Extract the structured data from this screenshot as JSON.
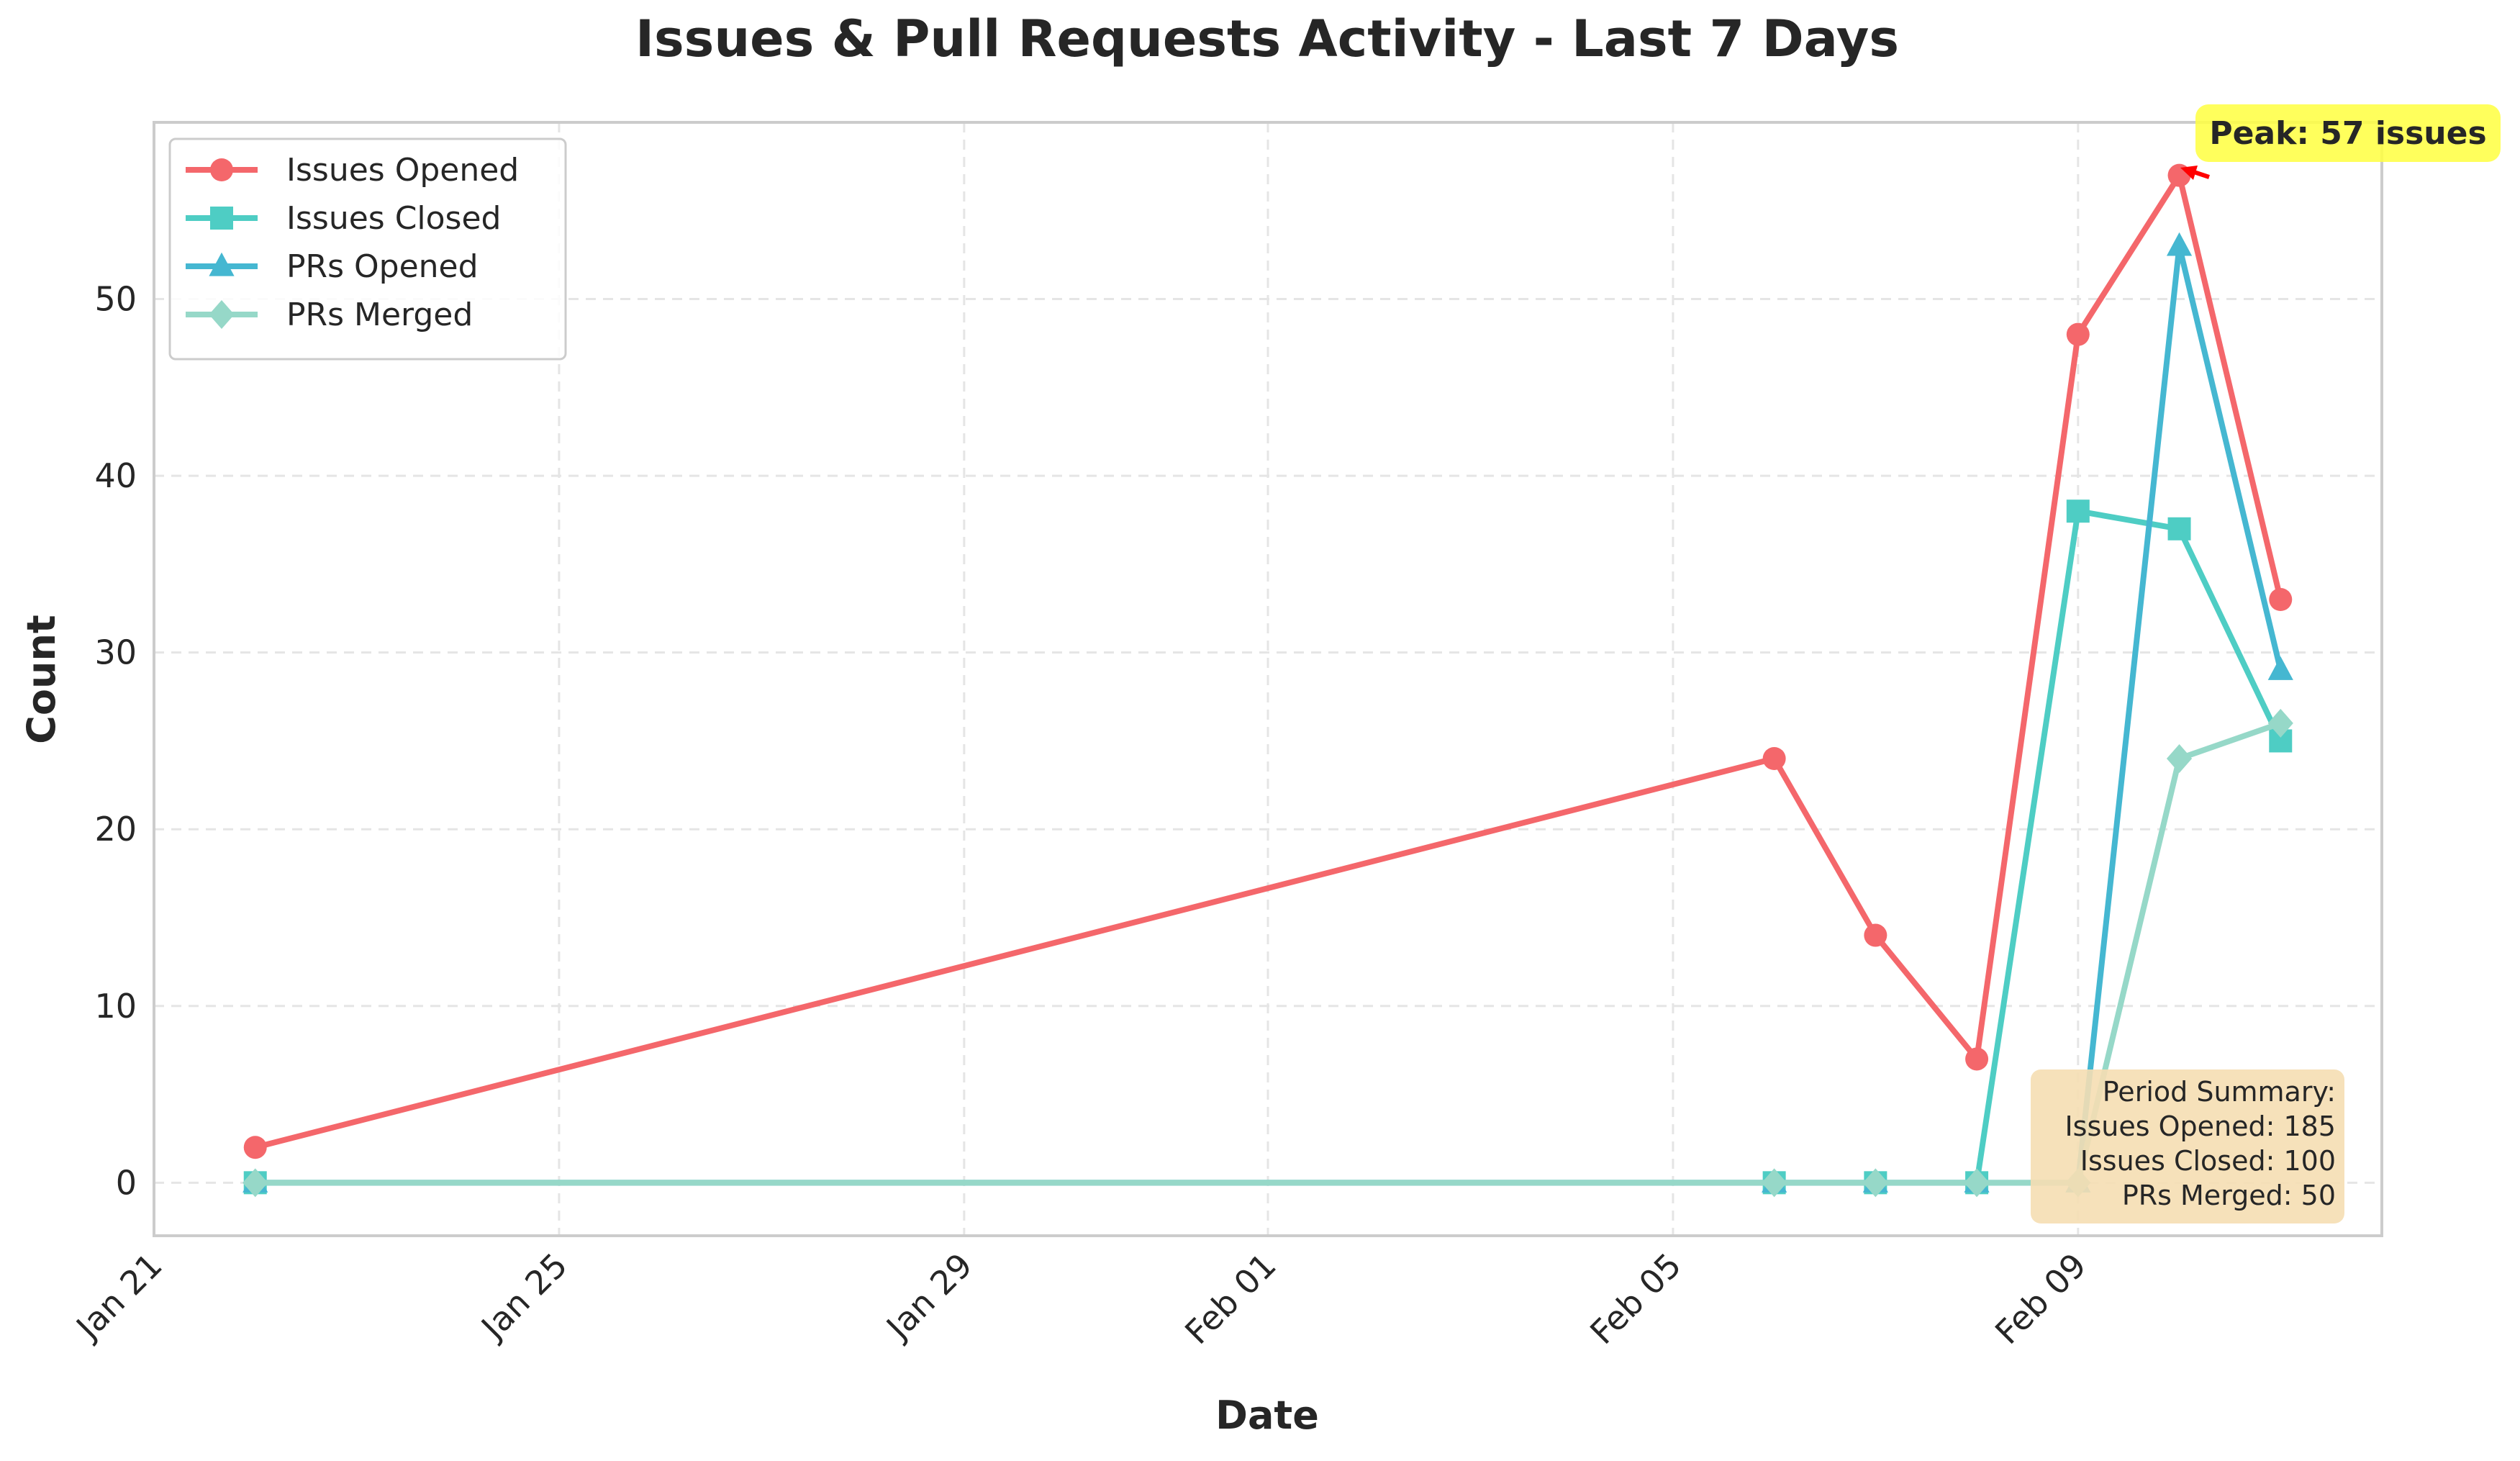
{
  "chart_data": {
    "type": "line",
    "title": "Issues & Pull Requests Activity - Last 7 Days",
    "xlabel": "Date",
    "ylabel": "Count",
    "x": [
      "2025-01-22",
      "2025-02-06",
      "2025-02-07",
      "2025-02-08",
      "2025-02-09",
      "2025-02-10",
      "2025-02-11"
    ],
    "xlim": [
      "2025-01-21",
      "2025-02-12"
    ],
    "x_ticks": [
      {
        "date": "2025-01-21",
        "label": "Jan 21"
      },
      {
        "date": "2025-01-25",
        "label": "Jan 25"
      },
      {
        "date": "2025-01-29",
        "label": "Jan 29"
      },
      {
        "date": "2025-02-01",
        "label": "Feb 01"
      },
      {
        "date": "2025-02-05",
        "label": "Feb 05"
      },
      {
        "date": "2025-02-09",
        "label": "Feb 09"
      }
    ],
    "ylim": [
      -3,
      60
    ],
    "y_ticks": [
      0,
      10,
      20,
      30,
      40,
      50
    ],
    "grid": true,
    "legend_position": "top-left",
    "series": [
      {
        "name": "Issues Opened",
        "color": "#f4676b",
        "marker": "circle",
        "values": [
          2,
          24,
          14,
          7,
          48,
          57,
          33
        ]
      },
      {
        "name": "Issues Closed",
        "color": "#4ecdc4",
        "marker": "square",
        "values": [
          0,
          0,
          0,
          0,
          38,
          37,
          25
        ]
      },
      {
        "name": "PRs Opened",
        "color": "#45b7d1",
        "marker": "triangle",
        "values": [
          0,
          0,
          0,
          0,
          0,
          53,
          29
        ]
      },
      {
        "name": "PRs Merged",
        "color": "#96d8c8",
        "marker": "diamond",
        "values": [
          0,
          0,
          0,
          0,
          0,
          24,
          26
        ]
      }
    ],
    "annotations": [
      {
        "text": "Peak: 57 issues",
        "x": "2025-02-10",
        "y": 57,
        "background": "#ffff40",
        "arrow_color": "#ff0000"
      }
    ],
    "summary": {
      "background": "#f5deb3",
      "lines": [
        "Period Summary:",
        "Issues Opened: 185",
        "Issues Closed: 100",
        "PRs Merged: 50"
      ]
    }
  }
}
